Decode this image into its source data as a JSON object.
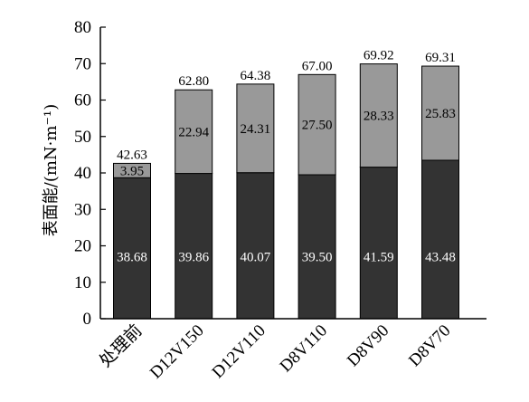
{
  "chart_data": {
    "type": "bar",
    "stacked": true,
    "categories": [
      "处理前",
      "D12V150",
      "D12V110",
      "D8V110",
      "D8V90",
      "D8V70"
    ],
    "series": [
      {
        "values": [
          38.68,
          39.86,
          40.07,
          39.5,
          41.59,
          43.48
        ],
        "color": "#333333"
      },
      {
        "values": [
          3.95,
          22.94,
          24.31,
          27.5,
          28.33,
          25.83
        ],
        "color": "#999999"
      }
    ],
    "labels": {
      "bottom": [
        "38.68",
        "39.86",
        "40.07",
        "39.50",
        "41.59",
        "43.48"
      ],
      "top": [
        "3.95",
        "22.94",
        "24.31",
        "27.50",
        "28.33",
        "25.83"
      ],
      "totals": [
        "42.63",
        "62.80",
        "64.38",
        "67.00",
        "69.92",
        "69.31"
      ]
    },
    "ylabel": "表面能/(mN·m⁻¹)",
    "xlabel": "",
    "ylim": [
      0,
      80
    ],
    "yticks": [
      "0",
      "10",
      "20",
      "30",
      "40",
      "50",
      "60",
      "70",
      "80"
    ],
    "grid": false,
    "legend": "none"
  }
}
